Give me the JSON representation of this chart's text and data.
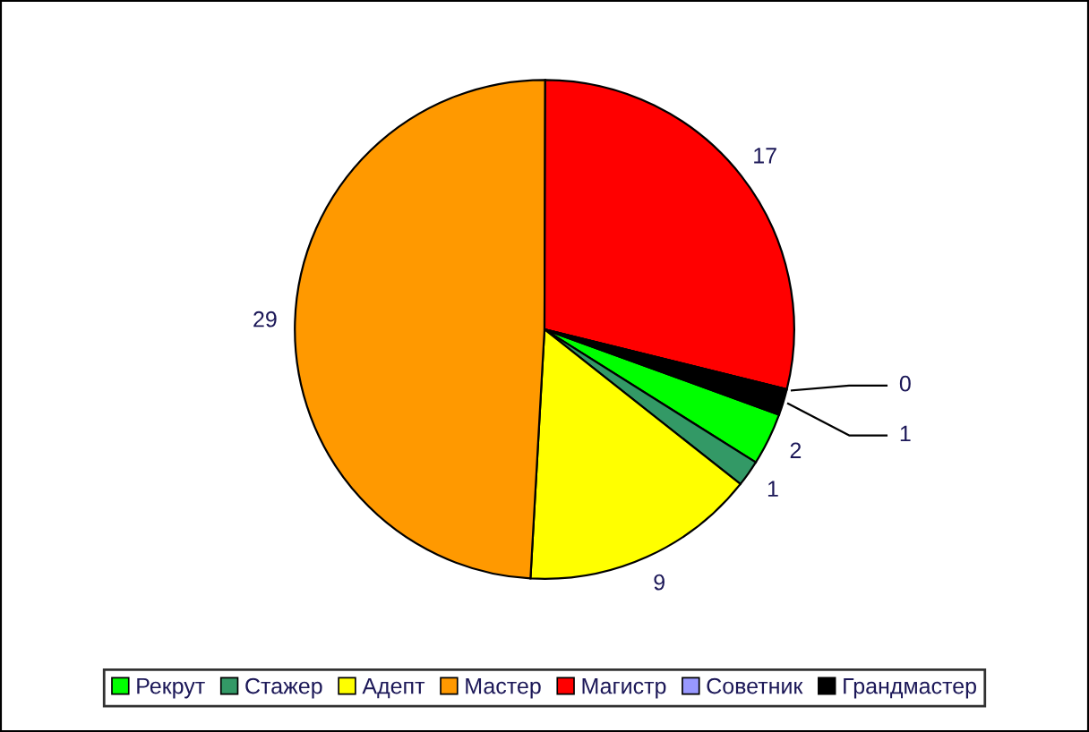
{
  "chart_data": {
    "type": "pie",
    "categories": [
      "Рекрут",
      "Стажер",
      "Адепт",
      "Мастер",
      "Магистр",
      "Советник",
      "Грандмастер"
    ],
    "values": [
      2,
      1,
      9,
      29,
      17,
      0,
      1
    ],
    "value_labels": [
      "2",
      "1",
      "9",
      "29",
      "17",
      "0",
      "1"
    ],
    "colors": [
      "#00ff00",
      "#339966",
      "#ffff00",
      "#ff9900",
      "#ff0000",
      "#9999ff",
      "#000000"
    ],
    "legend": "bottom"
  }
}
